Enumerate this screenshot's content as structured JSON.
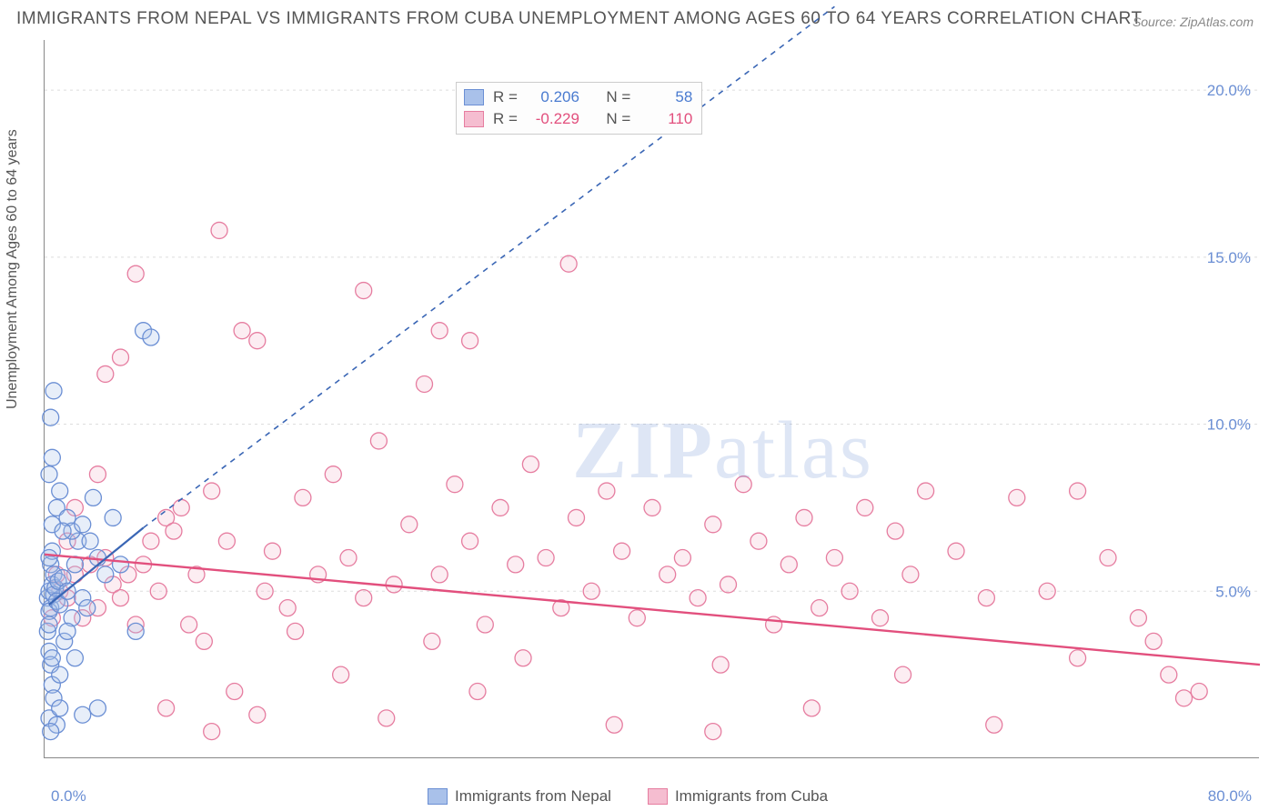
{
  "title": "IMMIGRANTS FROM NEPAL VS IMMIGRANTS FROM CUBA UNEMPLOYMENT AMONG AGES 60 TO 64 YEARS CORRELATION CHART",
  "source": "Source: ZipAtlas.com",
  "ylabel": "Unemployment Among Ages 60 to 64 years",
  "watermark_bold": "ZIP",
  "watermark_rest": "atlas",
  "chart": {
    "type": "scatter",
    "xlim": [
      0,
      80
    ],
    "ylim": [
      0,
      21.5
    ],
    "yticks": [
      5.0,
      10.0,
      15.0,
      20.0
    ],
    "ytick_labels": [
      "5.0%",
      "10.0%",
      "15.0%",
      "20.0%"
    ],
    "xtick_labels": {
      "left": "0.0%",
      "right": "80.0%"
    },
    "background_color": "#ffffff",
    "grid_color": "#dddddd",
    "axis_color": "#888888",
    "marker_radius": 9,
    "marker_stroke_width": 1.3,
    "marker_fill_opacity": 0.28
  },
  "series": {
    "nepal": {
      "label": "Immigrants from Nepal",
      "color_stroke": "#6b8fd4",
      "color_fill": "#a9c1ea",
      "stats": {
        "R": "0.206",
        "N": "58"
      },
      "stat_color": "#4a7bd0",
      "trend": {
        "x1": 0.3,
        "y1": 4.6,
        "x2": 6.5,
        "y2": 6.9,
        "dash_x2": 52,
        "dash_y2": 22.5,
        "stroke": "#3a66b5",
        "stroke_width": 2.2
      },
      "points": [
        [
          0.2,
          4.8
        ],
        [
          0.3,
          5.0
        ],
        [
          0.4,
          4.5
        ],
        [
          0.5,
          5.2
        ],
        [
          0.6,
          4.9
        ],
        [
          0.3,
          4.4
        ],
        [
          0.7,
          5.1
        ],
        [
          0.4,
          5.8
        ],
        [
          0.5,
          6.2
        ],
        [
          0.6,
          5.5
        ],
        [
          0.3,
          6.0
        ],
        [
          0.8,
          4.7
        ],
        [
          0.9,
          5.3
        ],
        [
          1.0,
          4.6
        ],
        [
          0.2,
          3.8
        ],
        [
          0.3,
          3.2
        ],
        [
          0.4,
          2.8
        ],
        [
          0.5,
          2.2
        ],
        [
          0.6,
          1.8
        ],
        [
          0.3,
          1.2
        ],
        [
          0.8,
          1.0
        ],
        [
          1.2,
          5.4
        ],
        [
          1.5,
          5.0
        ],
        [
          1.8,
          4.2
        ],
        [
          2.0,
          5.8
        ],
        [
          2.2,
          6.5
        ],
        [
          2.5,
          4.8
        ],
        [
          1.3,
          3.5
        ],
        [
          0.5,
          7.0
        ],
        [
          0.8,
          7.5
        ],
        [
          1.0,
          8.0
        ],
        [
          1.5,
          7.2
        ],
        [
          1.8,
          6.8
        ],
        [
          2.5,
          7.0
        ],
        [
          3.0,
          6.5
        ],
        [
          0.3,
          8.5
        ],
        [
          0.5,
          9.0
        ],
        [
          0.4,
          10.2
        ],
        [
          0.6,
          11.0
        ],
        [
          3.5,
          6.0
        ],
        [
          4.0,
          5.5
        ],
        [
          3.2,
          7.8
        ],
        [
          0.3,
          4.0
        ],
        [
          0.5,
          3.0
        ],
        [
          1.0,
          2.5
        ],
        [
          1.5,
          3.8
        ],
        [
          2.0,
          3.0
        ],
        [
          2.8,
          4.5
        ],
        [
          1.2,
          6.8
        ],
        [
          0.4,
          0.8
        ],
        [
          1.0,
          1.5
        ],
        [
          6.5,
          12.8
        ],
        [
          7.0,
          12.6
        ],
        [
          6.0,
          3.8
        ],
        [
          4.5,
          7.2
        ],
        [
          5.0,
          5.8
        ],
        [
          3.5,
          1.5
        ],
        [
          2.5,
          1.3
        ]
      ]
    },
    "cuba": {
      "label": "Immigrants from Cuba",
      "color_stroke": "#e67da0",
      "color_fill": "#f5bdd0",
      "stats": {
        "R": "-0.229",
        "N": "110"
      },
      "stat_color": "#e24f7d",
      "trend": {
        "x1": 0,
        "y1": 6.1,
        "x2": 80,
        "y2": 2.8,
        "stroke": "#e24f7d",
        "stroke_width": 2.4
      },
      "points": [
        [
          1.0,
          5.0
        ],
        [
          1.5,
          4.8
        ],
        [
          2.0,
          5.5
        ],
        [
          2.5,
          4.2
        ],
        [
          3.0,
          5.8
        ],
        [
          3.5,
          4.5
        ],
        [
          4.0,
          6.0
        ],
        [
          4.5,
          5.2
        ],
        [
          5.0,
          4.8
        ],
        [
          5.5,
          5.5
        ],
        [
          6.0,
          4.0
        ],
        [
          6.5,
          5.8
        ],
        [
          7.0,
          6.5
        ],
        [
          7.5,
          5.0
        ],
        [
          8.0,
          7.2
        ],
        [
          8.5,
          6.8
        ],
        [
          9.0,
          7.5
        ],
        [
          10.0,
          5.5
        ],
        [
          11.0,
          8.0
        ],
        [
          12.0,
          6.5
        ],
        [
          4.0,
          11.5
        ],
        [
          5.0,
          12.0
        ],
        [
          6.0,
          14.5
        ],
        [
          13.0,
          12.8
        ],
        [
          14.0,
          12.5
        ],
        [
          11.5,
          15.8
        ],
        [
          14.5,
          5.0
        ],
        [
          15.0,
          6.2
        ],
        [
          16.0,
          4.5
        ],
        [
          17.0,
          7.8
        ],
        [
          18.0,
          5.5
        ],
        [
          19.0,
          8.5
        ],
        [
          20.0,
          6.0
        ],
        [
          21.0,
          4.8
        ],
        [
          22.0,
          9.5
        ],
        [
          23.0,
          5.2
        ],
        [
          24.0,
          7.0
        ],
        [
          25.0,
          11.2
        ],
        [
          21.0,
          14.0
        ],
        [
          26.0,
          5.5
        ],
        [
          27.0,
          8.2
        ],
        [
          28.0,
          6.5
        ],
        [
          29.0,
          4.0
        ],
        [
          30.0,
          7.5
        ],
        [
          31.0,
          5.8
        ],
        [
          32.0,
          8.8
        ],
        [
          33.0,
          6.0
        ],
        [
          34.0,
          4.5
        ],
        [
          35.0,
          7.2
        ],
        [
          34.5,
          14.8
        ],
        [
          36.0,
          5.0
        ],
        [
          37.0,
          8.0
        ],
        [
          38.0,
          6.2
        ],
        [
          39.0,
          4.2
        ],
        [
          40.0,
          7.5
        ],
        [
          41.0,
          5.5
        ],
        [
          42.0,
          6.0
        ],
        [
          43.0,
          4.8
        ],
        [
          44.0,
          7.0
        ],
        [
          45.0,
          5.2
        ],
        [
          46.0,
          8.2
        ],
        [
          47.0,
          6.5
        ],
        [
          48.0,
          4.0
        ],
        [
          49.0,
          5.8
        ],
        [
          50.0,
          7.2
        ],
        [
          51.0,
          4.5
        ],
        [
          52.0,
          6.0
        ],
        [
          53.0,
          5.0
        ],
        [
          54.0,
          7.5
        ],
        [
          55.0,
          4.2
        ],
        [
          56.0,
          6.8
        ],
        [
          57.0,
          5.5
        ],
        [
          58.0,
          8.0
        ],
        [
          60.0,
          6.2
        ],
        [
          62.0,
          4.8
        ],
        [
          64.0,
          7.8
        ],
        [
          66.0,
          5.0
        ],
        [
          68.0,
          3.0
        ],
        [
          70.0,
          6.0
        ],
        [
          72.0,
          4.2
        ],
        [
          73.0,
          3.5
        ],
        [
          74.0,
          2.5
        ],
        [
          75.0,
          1.8
        ],
        [
          76.0,
          2.0
        ],
        [
          68.0,
          8.0
        ],
        [
          2.0,
          7.5
        ],
        [
          3.5,
          8.5
        ],
        [
          1.5,
          6.5
        ],
        [
          0.8,
          5.5
        ],
        [
          0.5,
          4.2
        ],
        [
          9.5,
          4.0
        ],
        [
          10.5,
          3.5
        ],
        [
          12.5,
          2.0
        ],
        [
          14.0,
          1.3
        ],
        [
          16.5,
          3.8
        ],
        [
          19.5,
          2.5
        ],
        [
          22.5,
          1.2
        ],
        [
          25.5,
          3.5
        ],
        [
          28.5,
          2.0
        ],
        [
          31.5,
          3.0
        ],
        [
          37.5,
          1.0
        ],
        [
          44.5,
          2.8
        ],
        [
          50.5,
          1.5
        ],
        [
          56.5,
          2.5
        ],
        [
          62.5,
          1.0
        ],
        [
          8.0,
          1.5
        ],
        [
          11.0,
          0.8
        ],
        [
          26.0,
          12.8
        ],
        [
          28.0,
          12.5
        ],
        [
          44.0,
          0.8
        ]
      ]
    }
  },
  "stats_legend": {
    "R_label": "R =",
    "N_label": "N ="
  }
}
